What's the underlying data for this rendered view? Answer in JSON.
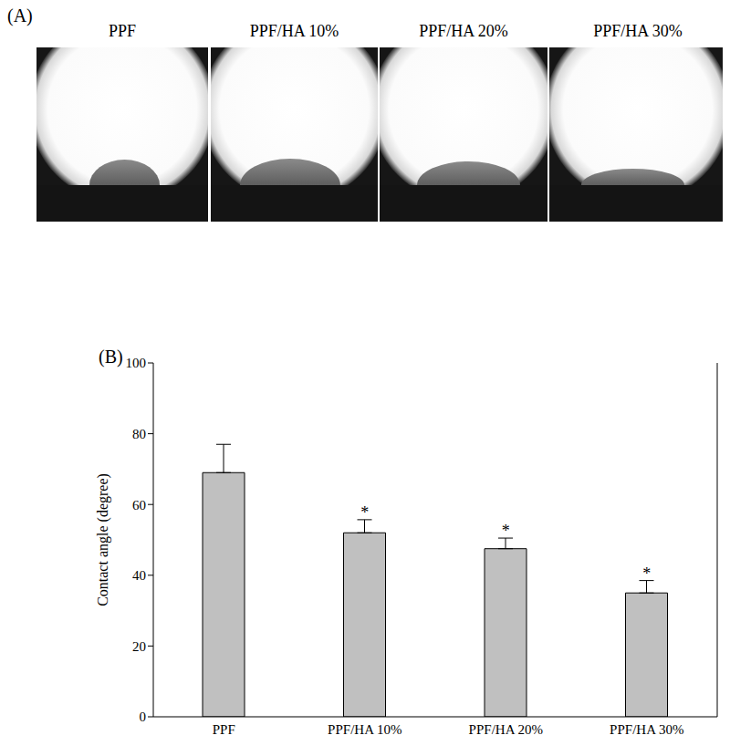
{
  "chart_data": {
    "type": "bar",
    "title": "(B)",
    "y_label": "Contact angle (degree)",
    "categories": [
      "PPF",
      "PPF/HA 10%",
      "PPF/HA 20%",
      "PPF/HA 30%"
    ],
    "values": [
      69,
      52,
      47.5,
      35
    ],
    "error": [
      8,
      3.7,
      3,
      3.5
    ],
    "annotations": [
      null,
      "*",
      "*",
      "*"
    ],
    "color": "#c0c0c0",
    "ylim": [
      0,
      100
    ],
    "yticks": [
      0,
      20,
      40,
      60,
      80,
      100
    ],
    "grid": false
  },
  "panel_a": {
    "label": "(A)",
    "titles": [
      "PPF",
      "PPF/HA 10%",
      "PPF/HA 20%",
      "PPF/HA 30%"
    ]
  }
}
